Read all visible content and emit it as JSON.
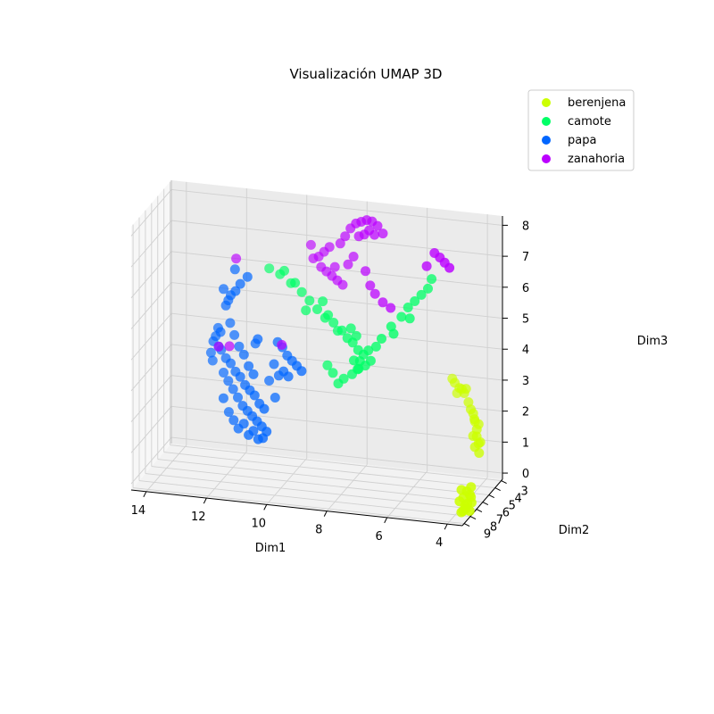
{
  "chart_data": {
    "type": "scatter",
    "projection": "3d",
    "title": "Visualización UMAP 3D",
    "xlabel": "Dim1",
    "ylabel": "Dim2",
    "zlabel": "Dim3",
    "xlim": [
      3.5,
      14.5
    ],
    "ylim": [
      2.8,
      9.3
    ],
    "zlim": [
      -0.2,
      8.3
    ],
    "xticks": [
      "14",
      "12",
      "10",
      "8",
      "6",
      "4"
    ],
    "yticks": [
      "9",
      "8",
      "7",
      "6",
      "5",
      "4",
      "3"
    ],
    "zticks": [
      "0",
      "1",
      "2",
      "3",
      "4",
      "5",
      "6",
      "7",
      "8"
    ],
    "grid": true,
    "legend_position": "top-right",
    "series": [
      {
        "name": "berenjena",
        "color": "#ccff00",
        "points": [
          [
            4.8,
            4.2,
            3.1
          ],
          [
            4.6,
            4.4,
            3.0
          ],
          [
            4.4,
            4.6,
            2.9
          ],
          [
            4.3,
            4.8,
            3.1
          ],
          [
            4.7,
            4.3,
            2.8
          ],
          [
            4.5,
            4.5,
            3.0
          ],
          [
            4.9,
            4.1,
            3.2
          ],
          [
            4.2,
            4.9,
            2.7
          ],
          [
            4.0,
            5.1,
            2.4
          ],
          [
            3.9,
            5.3,
            2.2
          ],
          [
            3.8,
            5.5,
            2.0
          ],
          [
            3.9,
            5.6,
            1.8
          ],
          [
            3.7,
            5.7,
            1.6
          ],
          [
            3.8,
            5.8,
            1.5
          ],
          [
            3.6,
            5.9,
            1.7
          ],
          [
            3.7,
            6.0,
            1.9
          ],
          [
            3.9,
            5.4,
            2.3
          ],
          [
            4.1,
            5.0,
            2.5
          ],
          [
            3.6,
            6.1,
            1.4
          ],
          [
            3.8,
            5.2,
            2.1
          ],
          [
            3.5,
            7.8,
            0.2
          ],
          [
            3.6,
            7.6,
            0.4
          ],
          [
            3.7,
            7.9,
            0.1
          ],
          [
            3.5,
            8.1,
            0.0
          ],
          [
            3.8,
            7.7,
            0.3
          ],
          [
            3.6,
            8.0,
            0.2
          ],
          [
            3.9,
            7.5,
            0.5
          ],
          [
            3.7,
            8.2,
            0.0
          ],
          [
            3.6,
            7.4,
            0.6
          ],
          [
            3.8,
            8.0,
            -0.1
          ],
          [
            3.5,
            7.9,
            0.4
          ],
          [
            3.9,
            7.8,
            0.2
          ],
          [
            3.6,
            8.3,
            0.1
          ],
          [
            3.7,
            7.6,
            0.5
          ]
        ]
      },
      {
        "name": "camote",
        "color": "#00ff66",
        "points": [
          [
            11.0,
            4.0,
            6.1
          ],
          [
            10.6,
            4.2,
            6.0
          ],
          [
            10.2,
            4.4,
            5.8
          ],
          [
            9.8,
            4.6,
            5.6
          ],
          [
            9.5,
            4.8,
            5.4
          ],
          [
            9.2,
            5.0,
            5.2
          ],
          [
            8.9,
            5.2,
            5.0
          ],
          [
            8.6,
            5.3,
            4.9
          ],
          [
            8.3,
            5.4,
            4.7
          ],
          [
            8.1,
            5.5,
            4.5
          ],
          [
            7.9,
            5.6,
            4.4
          ],
          [
            7.7,
            5.7,
            4.2
          ],
          [
            7.5,
            5.8,
            4.1
          ],
          [
            7.8,
            5.5,
            4.6
          ],
          [
            8.0,
            5.4,
            4.8
          ],
          [
            7.6,
            5.9,
            3.9
          ],
          [
            7.4,
            6.0,
            3.8
          ],
          [
            7.7,
            5.8,
            3.6
          ],
          [
            7.9,
            5.7,
            3.4
          ],
          [
            8.2,
            5.6,
            3.2
          ],
          [
            8.4,
            5.5,
            3.0
          ],
          [
            8.6,
            5.4,
            3.3
          ],
          [
            8.8,
            5.3,
            3.5
          ],
          [
            7.2,
            6.1,
            4.0
          ],
          [
            7.3,
            6.0,
            4.3
          ],
          [
            7.0,
            6.2,
            4.5
          ],
          [
            6.8,
            6.3,
            4.8
          ],
          [
            6.5,
            6.2,
            5.2
          ],
          [
            6.2,
            6.0,
            5.5
          ],
          [
            6.0,
            5.9,
            5.8
          ],
          [
            5.8,
            5.8,
            6.0
          ],
          [
            5.6,
            5.7,
            6.2
          ],
          [
            5.4,
            5.6,
            6.4
          ],
          [
            5.3,
            5.5,
            6.7
          ],
          [
            5.9,
            6.1,
            5.5
          ],
          [
            6.4,
            6.3,
            5.0
          ],
          [
            10.4,
            4.5,
            6.2
          ],
          [
            10.0,
            4.7,
            5.9
          ],
          [
            9.0,
            5.1,
            5.5
          ],
          [
            8.8,
            5.2,
            5.1
          ],
          [
            7.6,
            6.1,
            3.7
          ],
          [
            7.8,
            5.9,
            3.9
          ],
          [
            8.5,
            5.1,
            4.6
          ],
          [
            9.6,
            4.9,
            5.1
          ]
        ]
      },
      {
        "name": "papa",
        "color": "#0066ff",
        "points": [
          [
            12.6,
            4.0,
            3.3
          ],
          [
            12.4,
            4.2,
            3.1
          ],
          [
            12.2,
            4.4,
            3.0
          ],
          [
            12.0,
            4.6,
            2.8
          ],
          [
            11.8,
            4.8,
            2.7
          ],
          [
            11.6,
            5.0,
            2.5
          ],
          [
            11.4,
            5.2,
            2.4
          ],
          [
            11.2,
            5.4,
            2.3
          ],
          [
            11.0,
            5.6,
            2.1
          ],
          [
            10.8,
            5.8,
            2.0
          ],
          [
            12.5,
            4.1,
            2.6
          ],
          [
            12.3,
            4.3,
            2.4
          ],
          [
            12.1,
            4.5,
            2.2
          ],
          [
            11.9,
            4.7,
            2.0
          ],
          [
            11.7,
            4.9,
            1.8
          ],
          [
            11.5,
            5.1,
            1.7
          ],
          [
            11.3,
            5.3,
            1.6
          ],
          [
            11.1,
            5.5,
            1.5
          ],
          [
            10.9,
            5.7,
            1.4
          ],
          [
            10.7,
            5.9,
            1.3
          ],
          [
            12.8,
            3.9,
            3.7
          ],
          [
            12.7,
            4.0,
            4.0
          ],
          [
            12.9,
            3.8,
            3.5
          ],
          [
            12.6,
            4.1,
            3.9
          ],
          [
            12.3,
            4.0,
            4.2
          ],
          [
            12.1,
            4.3,
            3.9
          ],
          [
            11.9,
            4.5,
            3.6
          ],
          [
            11.7,
            4.7,
            3.4
          ],
          [
            11.5,
            4.9,
            3.1
          ],
          [
            11.3,
            5.1,
            2.9
          ],
          [
            12.4,
            4.2,
            4.8
          ],
          [
            12.2,
            4.4,
            5.2
          ],
          [
            12.0,
            4.6,
            5.4
          ],
          [
            11.8,
            4.8,
            5.7
          ],
          [
            12.1,
            4.2,
            6.0
          ],
          [
            11.6,
            4.6,
            5.9
          ],
          [
            12.5,
            4.1,
            5.3
          ],
          [
            12.3,
            4.3,
            5.0
          ],
          [
            10.2,
            5.0,
            3.6
          ],
          [
            10.0,
            5.2,
            3.5
          ],
          [
            9.8,
            5.4,
            3.4
          ],
          [
            9.6,
            5.6,
            3.3
          ],
          [
            10.4,
            4.8,
            3.8
          ],
          [
            10.6,
            4.6,
            3.9
          ],
          [
            10.3,
            5.1,
            3.1
          ],
          [
            10.1,
            5.3,
            3.0
          ],
          [
            10.5,
            4.9,
            2.9
          ],
          [
            10.7,
            4.7,
            3.2
          ],
          [
            10.9,
            4.5,
            2.6
          ],
          [
            10.6,
            5.0,
            2.2
          ],
          [
            11.0,
            5.8,
            1.0
          ],
          [
            10.8,
            6.0,
            1.1
          ],
          [
            11.2,
            5.6,
            1.2
          ],
          [
            11.4,
            5.4,
            1.0
          ],
          [
            11.6,
            5.2,
            1.3
          ],
          [
            12.2,
            4.7,
            1.5
          ],
          [
            12.0,
            4.9,
            1.3
          ],
          [
            11.8,
            5.1,
            1.1
          ],
          [
            12.6,
            4.4,
            3.5
          ],
          [
            11.4,
            4.3,
            3.7
          ],
          [
            12.9,
            3.9,
            2.9
          ],
          [
            13.0,
            3.7,
            3.1
          ],
          [
            11.2,
            4.9,
            4.0
          ],
          [
            12.4,
            4.6,
            1.9
          ]
        ]
      },
      {
        "name": "zanahoria",
        "color": "#bb00ff",
        "points": [
          [
            8.6,
            4.2,
            7.2
          ],
          [
            8.4,
            4.4,
            7.5
          ],
          [
            8.2,
            4.5,
            7.8
          ],
          [
            8.0,
            4.6,
            8.0
          ],
          [
            7.8,
            4.7,
            8.1
          ],
          [
            7.6,
            4.8,
            8.2
          ],
          [
            7.4,
            4.9,
            8.2
          ],
          [
            7.2,
            5.0,
            8.1
          ],
          [
            7.0,
            5.1,
            7.9
          ],
          [
            7.5,
            4.9,
            7.9
          ],
          [
            7.3,
            5.0,
            7.8
          ],
          [
            7.7,
            4.7,
            7.7
          ],
          [
            7.9,
            4.6,
            7.6
          ],
          [
            9.0,
            4.0,
            7.0
          ],
          [
            9.2,
            3.9,
            6.8
          ],
          [
            9.4,
            3.8,
            6.6
          ],
          [
            9.6,
            3.7,
            6.5
          ],
          [
            9.3,
            3.9,
            6.3
          ],
          [
            9.1,
            4.0,
            6.2
          ],
          [
            8.9,
            4.1,
            6.1
          ],
          [
            8.7,
            4.2,
            6.0
          ],
          [
            8.5,
            4.3,
            5.9
          ],
          [
            8.8,
            4.1,
            6.4
          ],
          [
            8.3,
            4.4,
            6.6
          ],
          [
            8.1,
            4.5,
            6.9
          ],
          [
            7.6,
            5.0,
            6.6
          ],
          [
            7.4,
            5.2,
            6.2
          ],
          [
            7.2,
            5.4,
            6.0
          ],
          [
            6.9,
            5.6,
            5.8
          ],
          [
            6.6,
            5.8,
            5.7
          ],
          [
            5.0,
            6.5,
            7.8
          ],
          [
            4.8,
            6.6,
            7.7
          ],
          [
            4.6,
            6.8,
            7.6
          ],
          [
            4.4,
            7.0,
            7.5
          ],
          [
            5.3,
            6.3,
            7.3
          ],
          [
            12.6,
            4.4,
            3.5
          ],
          [
            12.2,
            4.6,
            3.6
          ],
          [
            10.4,
            4.9,
            3.9
          ],
          [
            12.1,
            4.0,
            6.3
          ],
          [
            9.7,
            3.6,
            6.9
          ]
        ]
      }
    ]
  }
}
